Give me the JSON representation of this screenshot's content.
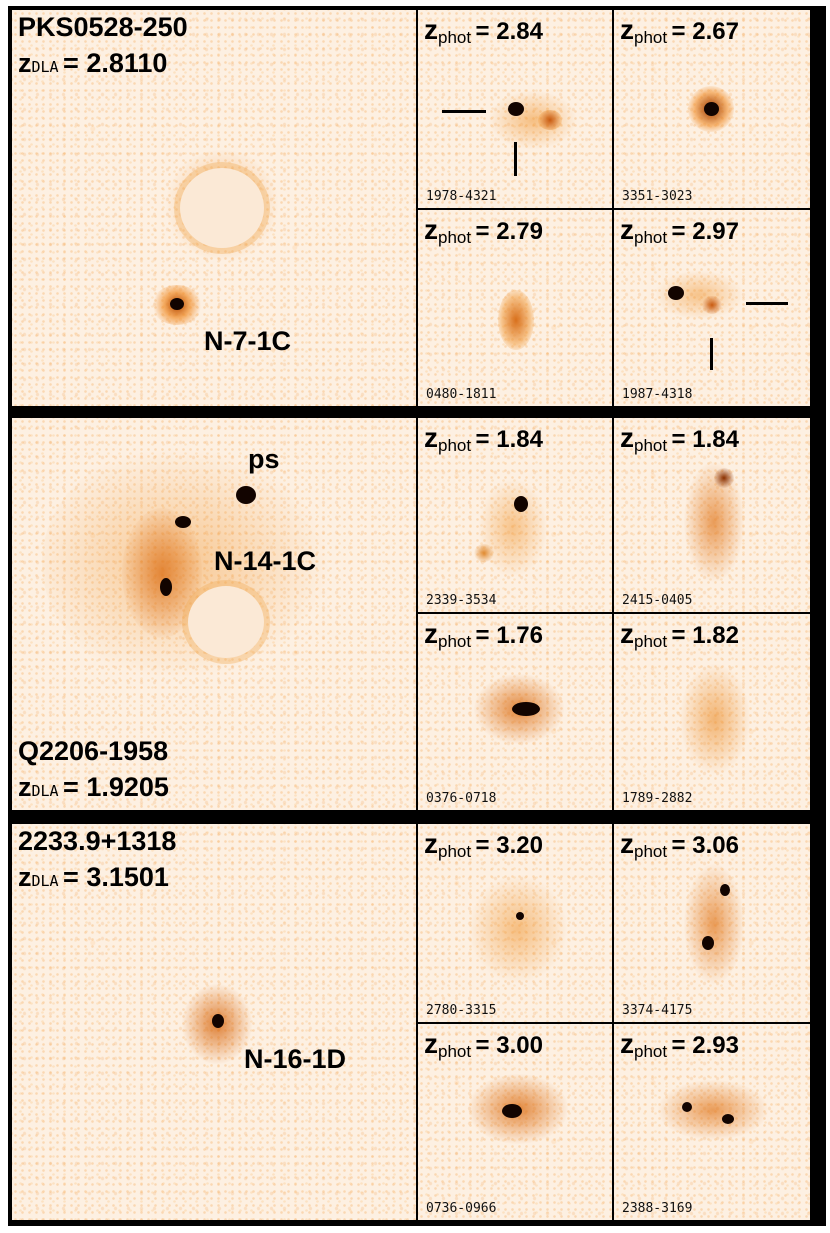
{
  "rows": [
    {
      "main": {
        "title": "PKS0528-250",
        "z_symbol": "z",
        "z_sub": "DLA",
        "z_val": "= 2.8110",
        "candidate": "N-7-1C"
      },
      "thumbs": [
        {
          "z_symbol": "z",
          "z_sub": "phot",
          "z_val": "= 2.84",
          "id": "1978-4321"
        },
        {
          "z_symbol": "z",
          "z_sub": "phot",
          "z_val": "= 2.67",
          "id": "3351-3023"
        },
        {
          "z_symbol": "z",
          "z_sub": "phot",
          "z_val": "= 2.79",
          "id": "0480-1811"
        },
        {
          "z_symbol": "z",
          "z_sub": "phot",
          "z_val": "= 2.97",
          "id": "1987-4318"
        }
      ]
    },
    {
      "main": {
        "title": "Q2206-1958",
        "z_symbol": "z",
        "z_sub": "DLA",
        "z_val": "= 1.9205",
        "candidate": "N-14-1C",
        "ps_label": "ps"
      },
      "thumbs": [
        {
          "z_symbol": "z",
          "z_sub": "phot",
          "z_val": "= 1.84",
          "id": "2339-3534"
        },
        {
          "z_symbol": "z",
          "z_sub": "phot",
          "z_val": "= 1.84",
          "id": "2415-0405"
        },
        {
          "z_symbol": "z",
          "z_sub": "phot",
          "z_val": "= 1.76",
          "id": "0376-0718"
        },
        {
          "z_symbol": "z",
          "z_sub": "phot",
          "z_val": "= 1.82",
          "id": "1789-2882"
        }
      ]
    },
    {
      "main": {
        "title": "2233.9+1318",
        "z_symbol": "z",
        "z_sub": "DLA",
        "z_val": "= 3.1501",
        "candidate": "N-16-1D"
      },
      "thumbs": [
        {
          "z_symbol": "z",
          "z_sub": "phot",
          "z_val": "= 3.20",
          "id": "2780-3315"
        },
        {
          "z_symbol": "z",
          "z_sub": "phot",
          "z_val": "= 3.06",
          "id": "3374-4175"
        },
        {
          "z_symbol": "z",
          "z_sub": "phot",
          "z_val": "= 3.00",
          "id": "0736-0966"
        },
        {
          "z_symbol": "z",
          "z_sub": "phot",
          "z_val": "= 2.93",
          "id": "2388-3169"
        }
      ]
    }
  ],
  "colors": {
    "background": "#fdf0e2",
    "emission": "#f0931e",
    "core": "#120400",
    "frame": "#000000"
  }
}
